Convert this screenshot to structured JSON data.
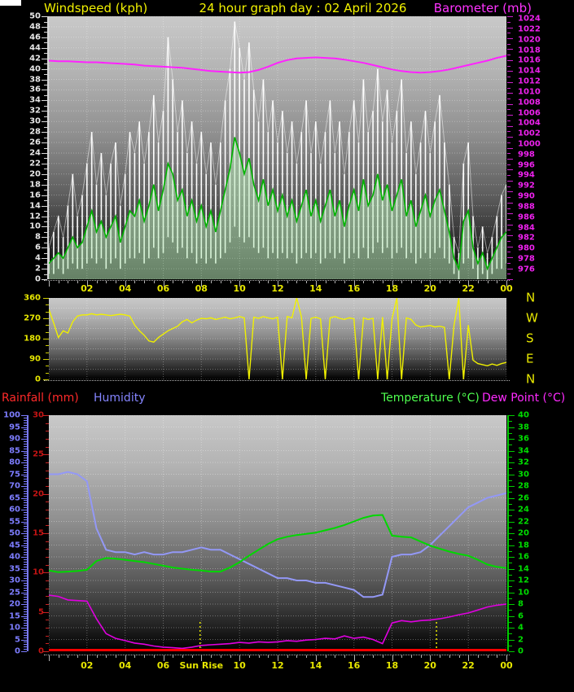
{
  "header": {
    "left_title": "Windspeed (kph)",
    "center_title": "24 hour graph day : 02 April 2026",
    "right_title": "Barometer (mb)"
  },
  "legend": {
    "rainfall": "Rainfall (mm)",
    "humidity": "Humidity",
    "temperature": "Temperature (°C)",
    "dew_point": "Dew Point (°C)"
  },
  "colors": {
    "title": "#f2f200",
    "windspeed_title": "#f2f200",
    "barometer_title": "#ff33ff",
    "hour_labels": "#e8e800",
    "rainfall_label": "#ff2a2a",
    "humidity_label": "#8585ff",
    "temperature_label": "#4eff4e",
    "dew_point_label": "#ff2aff",
    "wind_gust_line": "#ffffff",
    "wind_avg_line": "#00b400",
    "wind_avg_fill": "rgba(185,235,185,0.55)",
    "barometer_line": "#ff22ff",
    "direction_line": "#f0f000",
    "humidity_line": "#9398f6",
    "temperature_line": "#00d800",
    "dew_point_line": "#e000e0",
    "rainfall_line": "#ff0000",
    "sun_line": "#e8e800"
  },
  "chart_data": [
    {
      "id": "windspeed-barometer",
      "type": "line",
      "title": "24 hour graph day : 02 April 2026",
      "x_axis": {
        "unit": "hours",
        "range": [
          0,
          24
        ],
        "tick_labels": [
          "02",
          "04",
          "06",
          "08",
          "10",
          "12",
          "14",
          "16",
          "18",
          "20",
          "22",
          "00"
        ]
      },
      "left_axis": {
        "label": "Windspeed (kph)",
        "min": 0,
        "max": 50,
        "tick_labels": [
          "50",
          "48",
          "46",
          "44",
          "42",
          "40",
          "38",
          "36",
          "34",
          "32",
          "30",
          "28",
          "26",
          "24",
          "22",
          "20",
          "18",
          "16",
          "14",
          "12",
          "10",
          "8",
          "6",
          "4",
          "2",
          "0"
        ]
      },
      "right_axis": {
        "label": "Barometer (mb)",
        "min": 976,
        "max": 1024,
        "tick_labels": [
          "1024",
          "1022",
          "1020",
          "1018",
          "1016",
          "1014",
          "1012",
          "1010",
          "1008",
          "1006",
          "1004",
          "1002",
          "1000",
          "998",
          "996",
          "994",
          "992",
          "990",
          "988",
          "986",
          "984",
          "982",
          "980",
          "978",
          "976"
        ]
      },
      "series": [
        {
          "name": "wind gust max (kph)",
          "sample_minutes": 15,
          "values": [
            6,
            9,
            12,
            8,
            14,
            20,
            12,
            16,
            22,
            28,
            18,
            24,
            16,
            22,
            26,
            14,
            20,
            28,
            24,
            30,
            22,
            28,
            35,
            26,
            32,
            46,
            38,
            28,
            34,
            24,
            30,
            22,
            28,
            20,
            26,
            18,
            26,
            34,
            40,
            49,
            44,
            38,
            45,
            36,
            30,
            38,
            28,
            34,
            26,
            32,
            24,
            30,
            22,
            28,
            34,
            24,
            30,
            22,
            28,
            34,
            24,
            30,
            20,
            28,
            34,
            26,
            38,
            28,
            32,
            40,
            30,
            36,
            26,
            32,
            38,
            24,
            30,
            20,
            26,
            32,
            24,
            30,
            35,
            26,
            18,
            8,
            5,
            22,
            26,
            12,
            6,
            10,
            5,
            8,
            12,
            16,
            18
          ]
        },
        {
          "name": "wind gust min (kph)",
          "sample_minutes": 15,
          "values": [
            1,
            1,
            2,
            1,
            2,
            3,
            2,
            2,
            3,
            4,
            3,
            4,
            2,
            3,
            4,
            2,
            3,
            4,
            4,
            5,
            3,
            4,
            6,
            4,
            5,
            8,
            7,
            5,
            6,
            4,
            5,
            3,
            4,
            3,
            4,
            3,
            4,
            5,
            7,
            10,
            8,
            7,
            8,
            6,
            5,
            6,
            4,
            5,
            4,
            5,
            4,
            5,
            3,
            4,
            5,
            4,
            5,
            3,
            4,
            5,
            4,
            5,
            3,
            4,
            5,
            4,
            6,
            4,
            5,
            7,
            5,
            6,
            4,
            5,
            6,
            4,
            5,
            3,
            4,
            5,
            4,
            5,
            6,
            4,
            3,
            1,
            0,
            3,
            4,
            2,
            0,
            1,
            0,
            1,
            2,
            2,
            3
          ]
        },
        {
          "name": "wind average (kph)",
          "sample_minutes": 15,
          "values": [
            3,
            4,
            5,
            4,
            6,
            8,
            6,
            7,
            10,
            13,
            9,
            11,
            8,
            10,
            12,
            7,
            10,
            13,
            12,
            15,
            11,
            14,
            18,
            13,
            17,
            22,
            20,
            15,
            17,
            12,
            15,
            11,
            14,
            10,
            13,
            9,
            13,
            17,
            21,
            27,
            24,
            20,
            23,
            18,
            15,
            19,
            14,
            17,
            13,
            16,
            12,
            15,
            11,
            14,
            17,
            12,
            15,
            11,
            14,
            17,
            12,
            15,
            10,
            14,
            17,
            13,
            19,
            14,
            16,
            20,
            15,
            18,
            13,
            16,
            19,
            12,
            15,
            10,
            13,
            16,
            12,
            15,
            17,
            13,
            9,
            4,
            2,
            11,
            13,
            6,
            3,
            5,
            2,
            4,
            6,
            8,
            9
          ]
        },
        {
          "name": "barometer (mb)",
          "axis": "right",
          "sample_minutes": 30,
          "values": [
            1015.9,
            1015.8,
            1015.8,
            1015.7,
            1015.6,
            1015.6,
            1015.5,
            1015.4,
            1015.3,
            1015.2,
            1015.0,
            1014.9,
            1014.8,
            1014.7,
            1014.6,
            1014.4,
            1014.2,
            1014.0,
            1013.9,
            1013.8,
            1013.7,
            1013.8,
            1014.2,
            1014.8,
            1015.5,
            1016.0,
            1016.3,
            1016.4,
            1016.5,
            1016.4,
            1016.3,
            1016.1,
            1015.8,
            1015.5,
            1015.1,
            1014.7,
            1014.3,
            1014.0,
            1013.8,
            1013.7,
            1013.8,
            1014.0,
            1014.3,
            1014.7,
            1015.1,
            1015.5,
            1015.9,
            1016.4,
            1016.8
          ]
        }
      ]
    },
    {
      "id": "wind-direction",
      "type": "line",
      "x_axis": {
        "unit": "hours",
        "range": [
          0,
          24
        ]
      },
      "left_axis": {
        "label": "wind direction (degrees)",
        "min": 0,
        "max": 360,
        "tick_labels": [
          "360",
          "270",
          "180",
          "90",
          "0"
        ]
      },
      "right_axis": {
        "compass_labels": [
          "N",
          "W",
          "S",
          "E",
          "N"
        ]
      },
      "series": [
        {
          "name": "wind direction (degrees)",
          "sample_minutes": 15,
          "values": [
            310,
            250,
            185,
            215,
            205,
            255,
            280,
            285,
            285,
            290,
            285,
            288,
            285,
            282,
            285,
            288,
            285,
            280,
            240,
            215,
            195,
            170,
            165,
            185,
            200,
            215,
            225,
            235,
            255,
            265,
            250,
            262,
            270,
            268,
            272,
            265,
            270,
            275,
            268,
            272,
            278,
            272,
            0,
            275,
            270,
            278,
            272,
            268,
            275,
            0,
            278,
            272,
            360,
            275,
            0,
            270,
            275,
            268,
            0,
            272,
            278,
            270,
            265,
            272,
            268,
            0,
            272,
            265,
            270,
            0,
            275,
            0,
            268,
            360,
            0,
            272,
            265,
            240,
            232,
            235,
            238,
            232,
            235,
            230,
            0,
            238,
            360,
            0,
            240,
            85,
            70,
            65,
            60,
            68,
            62,
            70,
            75
          ]
        }
      ]
    },
    {
      "id": "rain-humidity-temperature-dewpoint",
      "type": "line",
      "x_axis": {
        "unit": "hours",
        "range": [
          0,
          24
        ],
        "tick_labels": [
          "02",
          "04",
          "06",
          "Sun Rise",
          "10",
          "12",
          "14",
          "16",
          "18",
          "20",
          "22",
          "00"
        ]
      },
      "left_axis_humidity": {
        "label": "Humidity",
        "min": 0,
        "max": 100,
        "tick_labels": [
          "100",
          "95",
          "90",
          "85",
          "80",
          "75",
          "70",
          "65",
          "60",
          "55",
          "50",
          "45",
          "40",
          "35",
          "30",
          "25",
          "20",
          "15",
          "10",
          "5",
          "0"
        ]
      },
      "left_axis_rainfall": {
        "label": "Rainfall (mm)",
        "min": 0,
        "max": 30,
        "tick_labels": [
          "30",
          "25",
          "20",
          "15",
          "10",
          "5",
          "0"
        ]
      },
      "right_axis_temperature": {
        "label": "Temperature (°C)",
        "min": 0,
        "max": 40,
        "tick_labels": [
          "40",
          "38",
          "36",
          "34",
          "32",
          "30",
          "28",
          "26",
          "24",
          "22",
          "20",
          "18",
          "16",
          "14",
          "12",
          "10",
          "8",
          "6",
          "4",
          "2",
          "0"
        ]
      },
      "annotations": [
        {
          "name": "sunrise-line",
          "hour": 7.93,
          "label": "Sun Rise"
        },
        {
          "name": "sunset-line",
          "hour": 20.33,
          "label": ""
        }
      ],
      "series": [
        {
          "name": "humidity (%)",
          "axis": "humidity",
          "sample_minutes": 30,
          "values": [
            75,
            75,
            76,
            75,
            72,
            52,
            43,
            42,
            42,
            41,
            42,
            41,
            41,
            42,
            42,
            43,
            44,
            43,
            43,
            41,
            39,
            37,
            35,
            33,
            31,
            31,
            30,
            30,
            29,
            29,
            28,
            27,
            26,
            23,
            23,
            24,
            40,
            41,
            41,
            42,
            45,
            49,
            53,
            57,
            61,
            63,
            65,
            66,
            67
          ]
        },
        {
          "name": "temperature (°C)",
          "axis": "temperature",
          "sample_minutes": 30,
          "values": [
            13.7,
            13.4,
            13.5,
            13.6,
            13.8,
            15.3,
            15.8,
            15.7,
            15.5,
            15.3,
            15.1,
            14.8,
            14.5,
            14.2,
            14.0,
            13.8,
            13.7,
            13.5,
            13.5,
            14.2,
            15.1,
            16.2,
            17.2,
            18.2,
            19.0,
            19.4,
            19.7,
            19.9,
            20.1,
            20.5,
            20.9,
            21.4,
            22.0,
            22.6,
            23.0,
            23.1,
            19.6,
            19.4,
            19.3,
            18.6,
            17.9,
            17.4,
            16.9,
            16.5,
            16.2,
            15.5,
            14.7,
            14.3,
            14.1
          ]
        },
        {
          "name": "dew point (°C)",
          "axis": "temperature",
          "sample_minutes": 30,
          "values": [
            9.5,
            9.3,
            8.7,
            8.6,
            8.5,
            5.5,
            3.0,
            2.2,
            1.8,
            1.4,
            1.2,
            0.9,
            0.7,
            0.6,
            0.5,
            0.7,
            1.0,
            1.1,
            1.2,
            1.3,
            1.5,
            1.4,
            1.6,
            1.5,
            1.6,
            1.8,
            1.7,
            1.9,
            2.0,
            2.2,
            2.1,
            2.6,
            2.2,
            2.4,
            2.0,
            1.3,
            4.8,
            5.2,
            5.0,
            5.2,
            5.3,
            5.5,
            5.8,
            6.2,
            6.5,
            7.0,
            7.5,
            7.8,
            8.0
          ]
        },
        {
          "name": "rainfall (mm)",
          "axis": "rainfall",
          "sample_minutes": 30,
          "values": [
            0,
            0,
            0,
            0,
            0,
            0,
            0,
            0,
            0,
            0,
            0,
            0,
            0,
            0,
            0,
            0,
            0,
            0,
            0,
            0,
            0,
            0,
            0,
            0,
            0,
            0,
            0,
            0,
            0,
            0,
            0,
            0,
            0,
            0,
            0,
            0,
            0,
            0,
            0,
            0,
            0,
            0,
            0,
            0,
            0,
            0,
            0,
            0,
            0
          ]
        }
      ]
    }
  ]
}
